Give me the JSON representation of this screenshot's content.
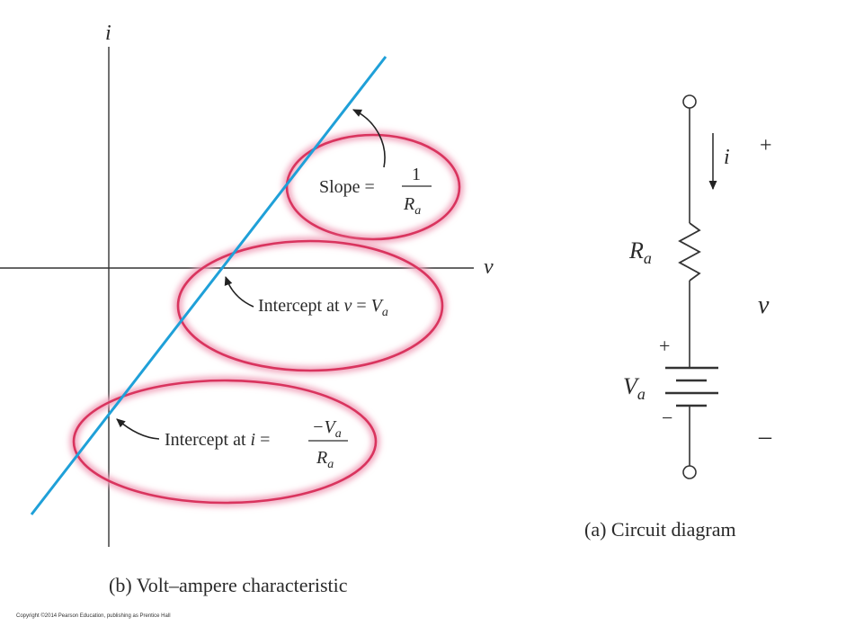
{
  "graph": {
    "axis_i_label": "i",
    "axis_v_label": "v",
    "slope": {
      "text": "Slope =",
      "num": "1",
      "den": "R",
      "den_sub": "a"
    },
    "intercept_v": {
      "text": "Intercept at",
      "var": "v",
      "eq": "=",
      "val": "V",
      "val_sub": "a"
    },
    "intercept_i": {
      "text": "Intercept at",
      "var": "i",
      "eq": "=",
      "num": "−V",
      "num_sub": "a",
      "den": "R",
      "den_sub": "a"
    },
    "caption": "(b) Volt–ampere characteristic",
    "line_color": "#1fa0d8",
    "highlight_color": "#d9345e"
  },
  "circuit": {
    "current_label": "i",
    "resistor_label": "R",
    "resistor_sub": "a",
    "source_label": "V",
    "source_sub": "a",
    "battery_plus": "+",
    "battery_minus": "−",
    "terminal_plus": "+",
    "terminal_minus": "–",
    "voltage_label": "v",
    "caption": "(a) Circuit diagram"
  },
  "copyright": "Copyright ©2014 Pearson Education, publishing as Prentice Hall"
}
